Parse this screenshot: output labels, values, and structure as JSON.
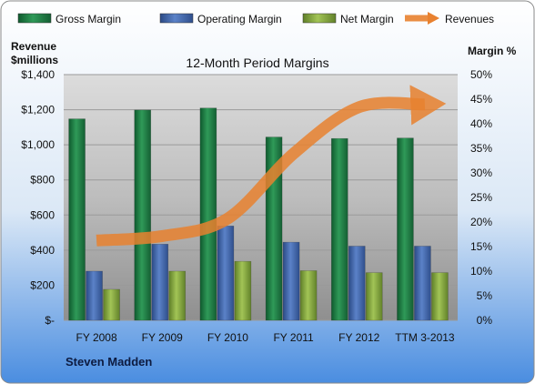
{
  "chart_data": {
    "type": "bar",
    "title": "12-Month Period Margins",
    "company": "Steven Madden",
    "left_axis": {
      "label_line1": "Revenue",
      "label_line2": "$millions",
      "range": [
        0,
        1400
      ],
      "ticks": [
        "$-",
        "$200",
        "$400",
        "$600",
        "$800",
        "$1,000",
        "$1,200",
        "$1,400"
      ]
    },
    "right_axis": {
      "label": "Margin %",
      "range": [
        0,
        50
      ],
      "ticks": [
        "0%",
        "5%",
        "10%",
        "15%",
        "20%",
        "25%",
        "30%",
        "35%",
        "40%",
        "45%",
        "50%"
      ]
    },
    "categories": [
      "FY 2008",
      "FY 2009",
      "FY 2010",
      "FY 2011",
      "FY 2012",
      "TTM 3-2013"
    ],
    "series": [
      {
        "name": "Gross Margin",
        "axis": "right",
        "color": "#1f7a44",
        "values": [
          41.0,
          42.8,
          43.2,
          37.3,
          37.0,
          37.1
        ]
      },
      {
        "name": "Operating Margin",
        "axis": "right",
        "color": "#3f63a8",
        "values": [
          10.0,
          15.5,
          19.2,
          15.9,
          15.1,
          15.1
        ]
      },
      {
        "name": "Net Margin",
        "axis": "right",
        "color": "#7ea23a",
        "values": [
          6.3,
          10.0,
          12.0,
          10.1,
          9.7,
          9.7
        ]
      },
      {
        "name": "Revenues",
        "axis": "left",
        "color": "#e8812f",
        "type": "line",
        "values": [
          455,
          480,
          580,
          950,
          1215,
          1230
        ]
      }
    ],
    "legend_position": "top",
    "grid": true
  }
}
